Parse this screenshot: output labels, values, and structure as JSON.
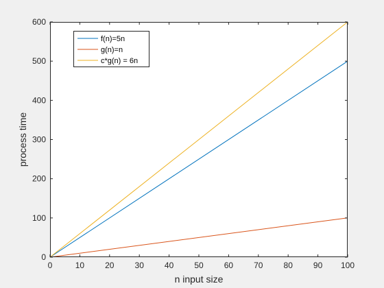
{
  "chart_data": {
    "type": "line",
    "title": "",
    "xlabel": "n input size",
    "ylabel": "process time",
    "xlim": [
      0,
      100
    ],
    "ylim": [
      0,
      600
    ],
    "xticks": [
      0,
      10,
      20,
      30,
      40,
      50,
      60,
      70,
      80,
      90,
      100
    ],
    "yticks": [
      0,
      100,
      200,
      300,
      400,
      500,
      600
    ],
    "grid": false,
    "legend_position": "top-left",
    "x": [
      0,
      100
    ],
    "series": [
      {
        "name": "f(n)=5n",
        "color": "#0072BD",
        "values": [
          0,
          500
        ]
      },
      {
        "name": "g(n)=n",
        "color": "#D95319",
        "values": [
          0,
          100
        ]
      },
      {
        "name": "c*g(n) = 6n",
        "color": "#EDB120",
        "values": [
          0,
          600
        ]
      }
    ]
  }
}
